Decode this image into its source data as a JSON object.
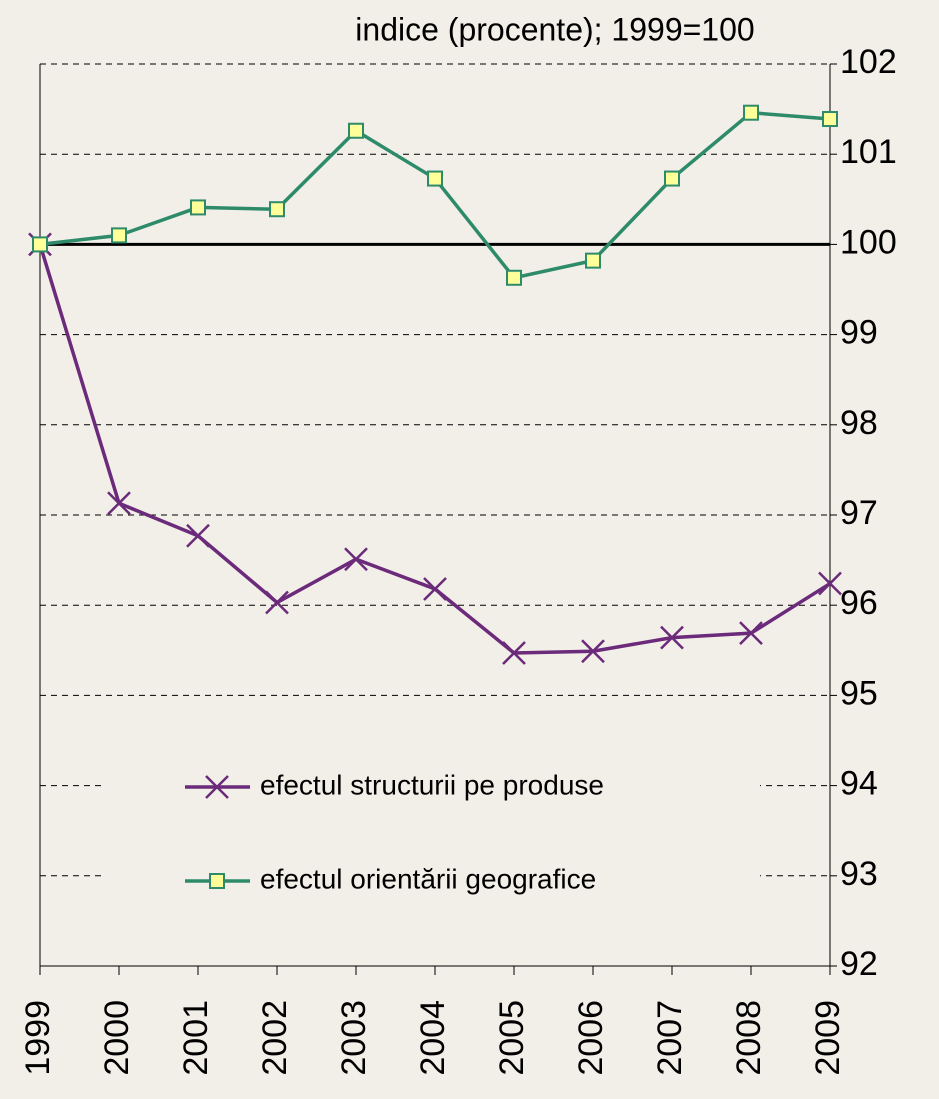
{
  "chart_data": {
    "type": "line",
    "title": "indice (procente); 1999=100",
    "categories": [
      "1999",
      "2000",
      "2001",
      "2002",
      "2003",
      "2004",
      "2005",
      "2006",
      "2007",
      "2008",
      "2009"
    ],
    "series": [
      {
        "name": "efectul structurii pe produse",
        "color": "#6b2a7a",
        "marker": "x",
        "values": [
          100,
          97.13,
          96.77,
          96.03,
          96.51,
          96.18,
          95.47,
          95.49,
          95.64,
          95.69,
          96.24
        ]
      },
      {
        "name": "efectul orientării geografice",
        "color": "#2e8b6a",
        "marker": "square",
        "values": [
          100,
          100.1,
          100.41,
          100.39,
          101.26,
          100.73,
          99.63,
          99.82,
          100.73,
          101.46,
          101.39
        ]
      }
    ],
    "ylim": [
      92,
      102
    ],
    "yticks": [
      92,
      93,
      94,
      95,
      96,
      97,
      98,
      99,
      100,
      101,
      102
    ],
    "reference_line": 100,
    "grid": true,
    "legend": "center"
  }
}
